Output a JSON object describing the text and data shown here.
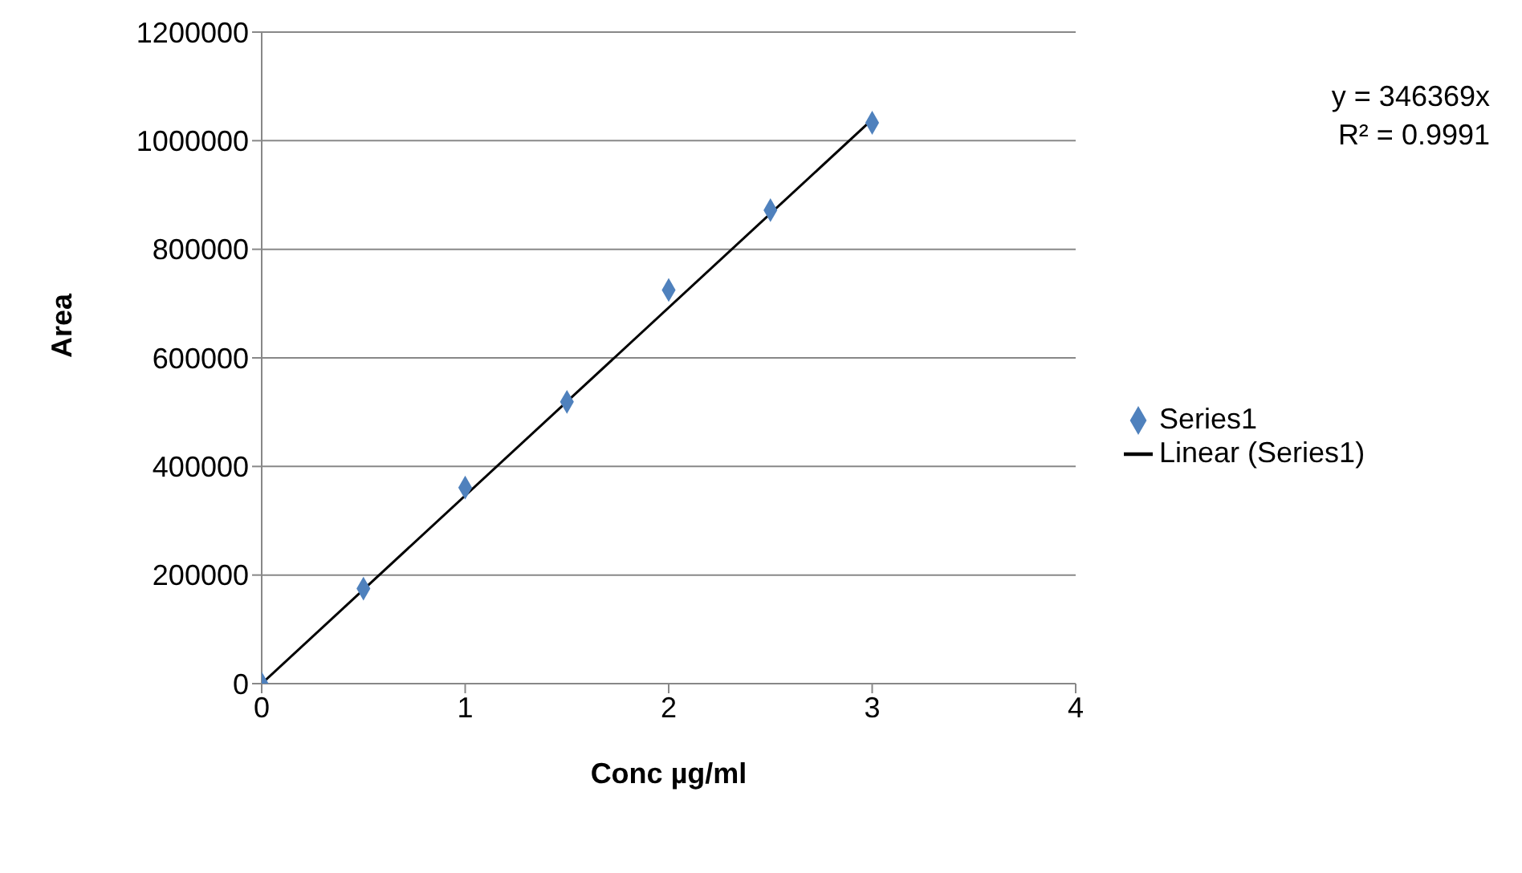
{
  "chart_data": {
    "type": "scatter",
    "xlabel": "Conc µg/ml",
    "ylabel": "Area",
    "x": [
      0,
      0.5,
      1,
      1.5,
      2,
      2.5,
      3
    ],
    "series": [
      {
        "name": "Series1",
        "color": "#4f81bd",
        "marker": "diamond",
        "values": [
          0,
          175000,
          361000,
          519000,
          725000,
          872000,
          1033000
        ]
      },
      {
        "name": "Linear (Series1)",
        "type": "line",
        "color": "#000000",
        "marker": "none",
        "line_style": "solid",
        "x": [
          0,
          3
        ],
        "values": [
          0,
          1039000
        ]
      }
    ],
    "xlim": [
      0,
      4
    ],
    "xticks": [
      0,
      1,
      2,
      3,
      4
    ],
    "ylim": [
      0,
      1200000
    ],
    "yticks": [
      0,
      200000,
      400000,
      600000,
      800000,
      1000000,
      1200000
    ],
    "grid": "y",
    "legend": "right",
    "annotations": [
      "y = 346369x",
      "R² = 0.9991"
    ]
  }
}
